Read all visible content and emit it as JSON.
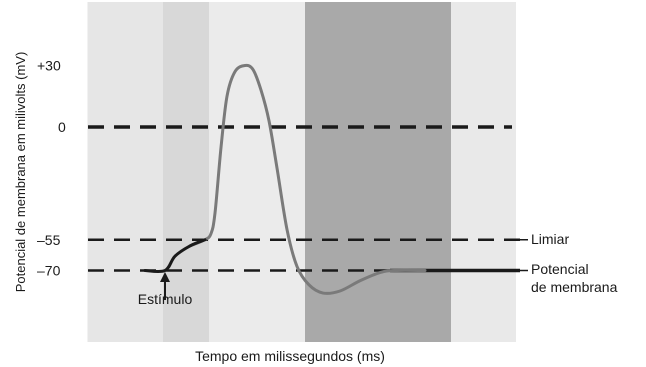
{
  "chart_data": {
    "type": "line",
    "title": "",
    "xlabel": "Tempo em milissegundos (ms)",
    "ylabel": "Potencial de membrana em milivolts (mV)",
    "ylim": [
      -110,
      55
    ],
    "y_ticks": [
      {
        "value": 30,
        "label": "+30"
      },
      {
        "value": 0,
        "label": "0"
      },
      {
        "value": -55,
        "label": "–55"
      },
      {
        "value": -70,
        "label": "–70"
      }
    ],
    "reference_lines": [
      {
        "value": 0,
        "label": ""
      },
      {
        "value": -55,
        "label": "Limiar"
      },
      {
        "value": -70,
        "label": "Potencial de membrana",
        "label_lines": [
          "Potencial",
          "de membrana"
        ]
      }
    ],
    "annotations": [
      {
        "text": "Estímulo",
        "x": 0.2,
        "y": -70
      }
    ],
    "grid": false,
    "series": [
      {
        "points": [
          [
            0.0,
            -70
          ],
          [
            0.2,
            -70
          ],
          [
            0.3,
            -63
          ],
          [
            0.45,
            -58
          ],
          [
            0.6,
            -55
          ],
          [
            0.66,
            -52
          ],
          [
            0.7,
            -42
          ],
          [
            0.76,
            -10
          ],
          [
            0.82,
            15
          ],
          [
            0.9,
            27
          ],
          [
            1.0,
            30
          ],
          [
            1.08,
            28
          ],
          [
            1.16,
            18
          ],
          [
            1.24,
            3
          ],
          [
            1.32,
            -20
          ],
          [
            1.42,
            -50
          ],
          [
            1.52,
            -68
          ],
          [
            1.64,
            -77
          ],
          [
            1.78,
            -81
          ],
          [
            1.95,
            -80
          ],
          [
            2.15,
            -75
          ],
          [
            2.35,
            -71
          ],
          [
            2.5,
            -70
          ],
          [
            2.8,
            -70
          ]
        ]
      }
    ]
  },
  "colors": {
    "curve": "#7a7a7a",
    "dark_curve": "#1a1a1a",
    "band_outer": "#e6e6e6",
    "band_light": "#d8d8d8",
    "band_mid": "#ebebeb",
    "band_dark": "#a9a9a9"
  }
}
